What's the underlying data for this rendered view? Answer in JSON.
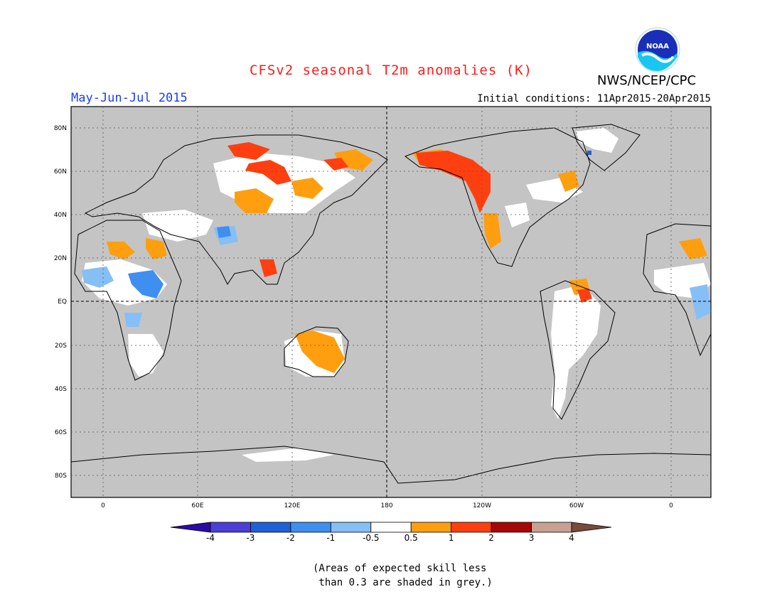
{
  "header": {
    "title": "CFSv2 seasonal T2m anomalies (K)",
    "season": "May-Jun-Jul 2015",
    "initial_conditions": "Initial conditions: 11Apr2015-20Apr2015",
    "agency": "NWS/NCEP/CPC",
    "logo_text": "NOAA"
  },
  "map": {
    "lat_labels": [
      "80N",
      "60N",
      "40N",
      "20N",
      "EQ",
      "20S",
      "40S",
      "60S",
      "80S"
    ],
    "lon_labels": [
      "0",
      "60E",
      "120E",
      "180",
      "120W",
      "60W",
      "0"
    ]
  },
  "colorbar": {
    "labels": [
      "-4",
      "-3",
      "-2",
      "-1",
      "-0.5",
      "0.5",
      "1",
      "2",
      "3",
      "4"
    ],
    "colors": [
      "#2a0ba6",
      "#4b3fd6",
      "#1f60d8",
      "#3f8ff0",
      "#86bff6",
      "#ffffff",
      "#ff9f0f",
      "#ff3f0f",
      "#a80707",
      "#c9a192",
      "#7a4a3a"
    ]
  },
  "note": "(Areas of expected skill less\n than 0.3 are shaded in grey.)",
  "colors": {
    "skill_grey": "#c4c4c4",
    "title_red": "#ff1a1a",
    "season_blue": "#1a3cff"
  }
}
